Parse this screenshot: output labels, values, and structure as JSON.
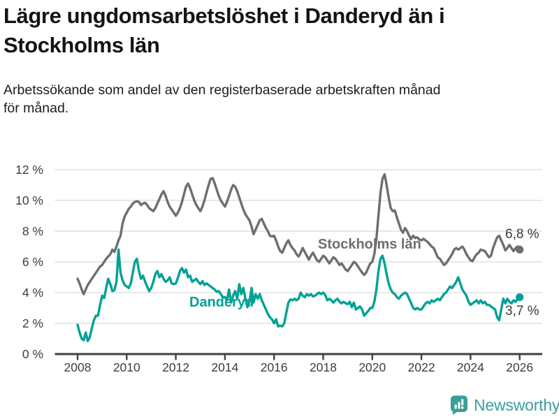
{
  "header": {
    "title_lines": [
      "Lägre ungdomsarbetslöshet i Danderyd än i",
      "Stockholms län"
    ],
    "subtitle_lines": [
      "Arbetssökande som andel av den registerbaserade arbetskraften månad",
      "för månad."
    ]
  },
  "chart_data": {
    "type": "line",
    "title": "Lägre ungdomsarbetslöshet i Danderyd än i Stockholms län",
    "subtitle": "Arbetssökande som andel av den registerbaserade arbetskraften månad för månad.",
    "x_start": 2008.0,
    "x_step_months": 1,
    "x_axis": {
      "ticks": [
        2008,
        2010,
        2012,
        2014,
        2016,
        2018,
        2020,
        2022,
        2024,
        2026
      ],
      "range": [
        2007.1,
        2026.95
      ]
    },
    "y_axis": {
      "ticks": [
        0,
        2,
        4,
        6,
        8,
        10,
        12
      ],
      "tick_labels": [
        "0 %",
        "2 %",
        "4 %",
        "6 %",
        "8 %",
        "10 %",
        "12 %"
      ],
      "range": [
        0,
        12
      ]
    },
    "grid": "horizontal",
    "legend_position": "inline-labels",
    "colors": {
      "grid": "#d9d9d9",
      "axis": "#404040",
      "tick_text": "#3d3d3d"
    },
    "series": [
      {
        "name": "Stockholms län",
        "color": "#6d6e71",
        "end_label": "6,8 %",
        "end_value": 6.8,
        "values": [
          4.9,
          4.6,
          4.2,
          3.9,
          4.2,
          4.5,
          4.7,
          4.9,
          5.1,
          5.3,
          5.5,
          5.7,
          5.8,
          6.0,
          6.2,
          6.35,
          6.5,
          6.8,
          6.65,
          7.0,
          7.4,
          7.7,
          8.5,
          8.95,
          9.2,
          9.45,
          9.6,
          9.8,
          9.9,
          9.95,
          9.9,
          9.7,
          9.8,
          9.85,
          9.7,
          9.5,
          9.4,
          9.3,
          9.5,
          9.8,
          10.1,
          10.4,
          10.6,
          10.3,
          9.9,
          9.6,
          9.4,
          9.2,
          9.0,
          9.2,
          9.5,
          9.9,
          10.4,
          10.9,
          11.1,
          10.8,
          10.4,
          10.0,
          9.7,
          9.5,
          9.3,
          9.6,
          10.0,
          10.5,
          11.0,
          11.4,
          11.45,
          11.1,
          10.7,
          10.3,
          10.0,
          9.8,
          9.6,
          9.9,
          10.3,
          10.7,
          11.0,
          10.9,
          10.6,
          10.2,
          9.8,
          9.4,
          9.1,
          8.9,
          8.7,
          8.3,
          7.8,
          8.1,
          8.4,
          8.7,
          8.8,
          8.5,
          8.2,
          8.0,
          7.7,
          7.65,
          7.7,
          7.4,
          7.0,
          6.7,
          6.6,
          6.9,
          7.2,
          7.4,
          7.1,
          6.9,
          6.75,
          6.5,
          6.35,
          6.6,
          6.9,
          6.65,
          6.4,
          6.15,
          6.4,
          6.6,
          6.35,
          6.1,
          6.0,
          6.2,
          6.4,
          6.3,
          6.1,
          5.9,
          6.1,
          6.3,
          6.2,
          6.0,
          5.8,
          5.9,
          5.7,
          5.5,
          5.4,
          5.6,
          5.8,
          6.0,
          5.9,
          5.7,
          5.5,
          5.3,
          5.15,
          5.3,
          5.6,
          5.9,
          6.0,
          6.5,
          7.5,
          9.0,
          10.5,
          11.4,
          11.7,
          11.0,
          10.2,
          9.5,
          9.3,
          9.35,
          8.9,
          8.5,
          8.1,
          7.9,
          8.2,
          8.0,
          7.7,
          7.5,
          7.7,
          7.55,
          7.6,
          7.45,
          7.4,
          7.5,
          7.4,
          7.3,
          7.15,
          7.0,
          6.9,
          6.6,
          6.3,
          6.2,
          6.0,
          5.8,
          5.9,
          6.1,
          6.3,
          6.5,
          6.8,
          6.9,
          6.8,
          6.9,
          7.0,
          6.8,
          6.5,
          6.3,
          6.1,
          6.05,
          6.3,
          6.5,
          6.6,
          6.8,
          6.75,
          6.7,
          6.5,
          6.3,
          6.4,
          6.9,
          7.25,
          7.6,
          7.7,
          7.4,
          7.1,
          6.75,
          6.9,
          7.1,
          6.9,
          6.7,
          6.9,
          7.0,
          6.8
        ]
      },
      {
        "name": "Danderyd",
        "color": "#00a294",
        "end_label": "3,7 %",
        "end_value": 3.7,
        "values": [
          1.9,
          1.4,
          1.0,
          0.9,
          1.4,
          0.85,
          1.1,
          1.7,
          2.2,
          2.5,
          2.5,
          3.2,
          3.8,
          3.65,
          4.3,
          4.9,
          4.55,
          4.1,
          4.15,
          4.7,
          6.8,
          5.3,
          4.8,
          4.5,
          4.4,
          4.3,
          4.6,
          5.3,
          6.0,
          6.2,
          5.4,
          4.9,
          5.1,
          4.7,
          4.4,
          4.1,
          4.3,
          4.7,
          5.2,
          5.4,
          5.0,
          5.2,
          4.9,
          4.7,
          4.8,
          5.0,
          4.6,
          4.55,
          4.6,
          4.95,
          5.4,
          5.6,
          5.3,
          5.5,
          5.0,
          5.1,
          4.7,
          4.8,
          4.9,
          4.7,
          4.55,
          4.75,
          4.5,
          4.6,
          4.5,
          4.4,
          4.3,
          4.2,
          4.05,
          4.1,
          3.9,
          3.7,
          3.7,
          3.5,
          4.2,
          3.35,
          3.8,
          4.1,
          3.6,
          4.55,
          3.9,
          4.3,
          3.6,
          3.05,
          3.4,
          4.3,
          3.35,
          3.9,
          3.6,
          3.9,
          3.5,
          3.2,
          2.9,
          2.6,
          2.4,
          2.26,
          2.0,
          2.26,
          1.8,
          1.85,
          1.8,
          2.0,
          2.7,
          3.34,
          3.56,
          3.5,
          3.6,
          3.5,
          3.6,
          4.0,
          3.8,
          3.7,
          3.9,
          3.8,
          3.9,
          3.75,
          3.8,
          3.9,
          4.0,
          3.9,
          4.0,
          3.85,
          3.5,
          3.6,
          3.5,
          3.35,
          3.5,
          3.6,
          3.4,
          3.3,
          3.4,
          3.3,
          3.25,
          3.4,
          3.05,
          3.35,
          2.9,
          3.0,
          3.1,
          2.9,
          2.5,
          2.65,
          2.8,
          3.0,
          3.0,
          3.4,
          4.2,
          5.4,
          6.2,
          6.4,
          5.9,
          5.2,
          4.6,
          4.2,
          4.0,
          3.9,
          3.7,
          3.6,
          3.8,
          3.9,
          4.0,
          3.9,
          3.6,
          3.3,
          3.0,
          2.9,
          3.0,
          2.9,
          2.9,
          3.1,
          3.3,
          3.4,
          3.3,
          3.5,
          3.4,
          3.5,
          3.6,
          3.5,
          3.7,
          3.9,
          4.0,
          4.2,
          4.4,
          4.3,
          4.5,
          4.7,
          5.0,
          4.6,
          4.2,
          4.0,
          3.8,
          3.4,
          3.2,
          3.3,
          3.4,
          3.5,
          3.3,
          3.5,
          3.3,
          3.4,
          3.2,
          3.2,
          3.1,
          3.0,
          2.9,
          2.4,
          2.2,
          2.9,
          3.6,
          3.3,
          3.6,
          3.4,
          3.3,
          3.5,
          3.4,
          3.6,
          3.7
        ]
      }
    ]
  },
  "footer": {
    "brand": "Newsworthy",
    "brand_color": "#3b9e9b"
  }
}
